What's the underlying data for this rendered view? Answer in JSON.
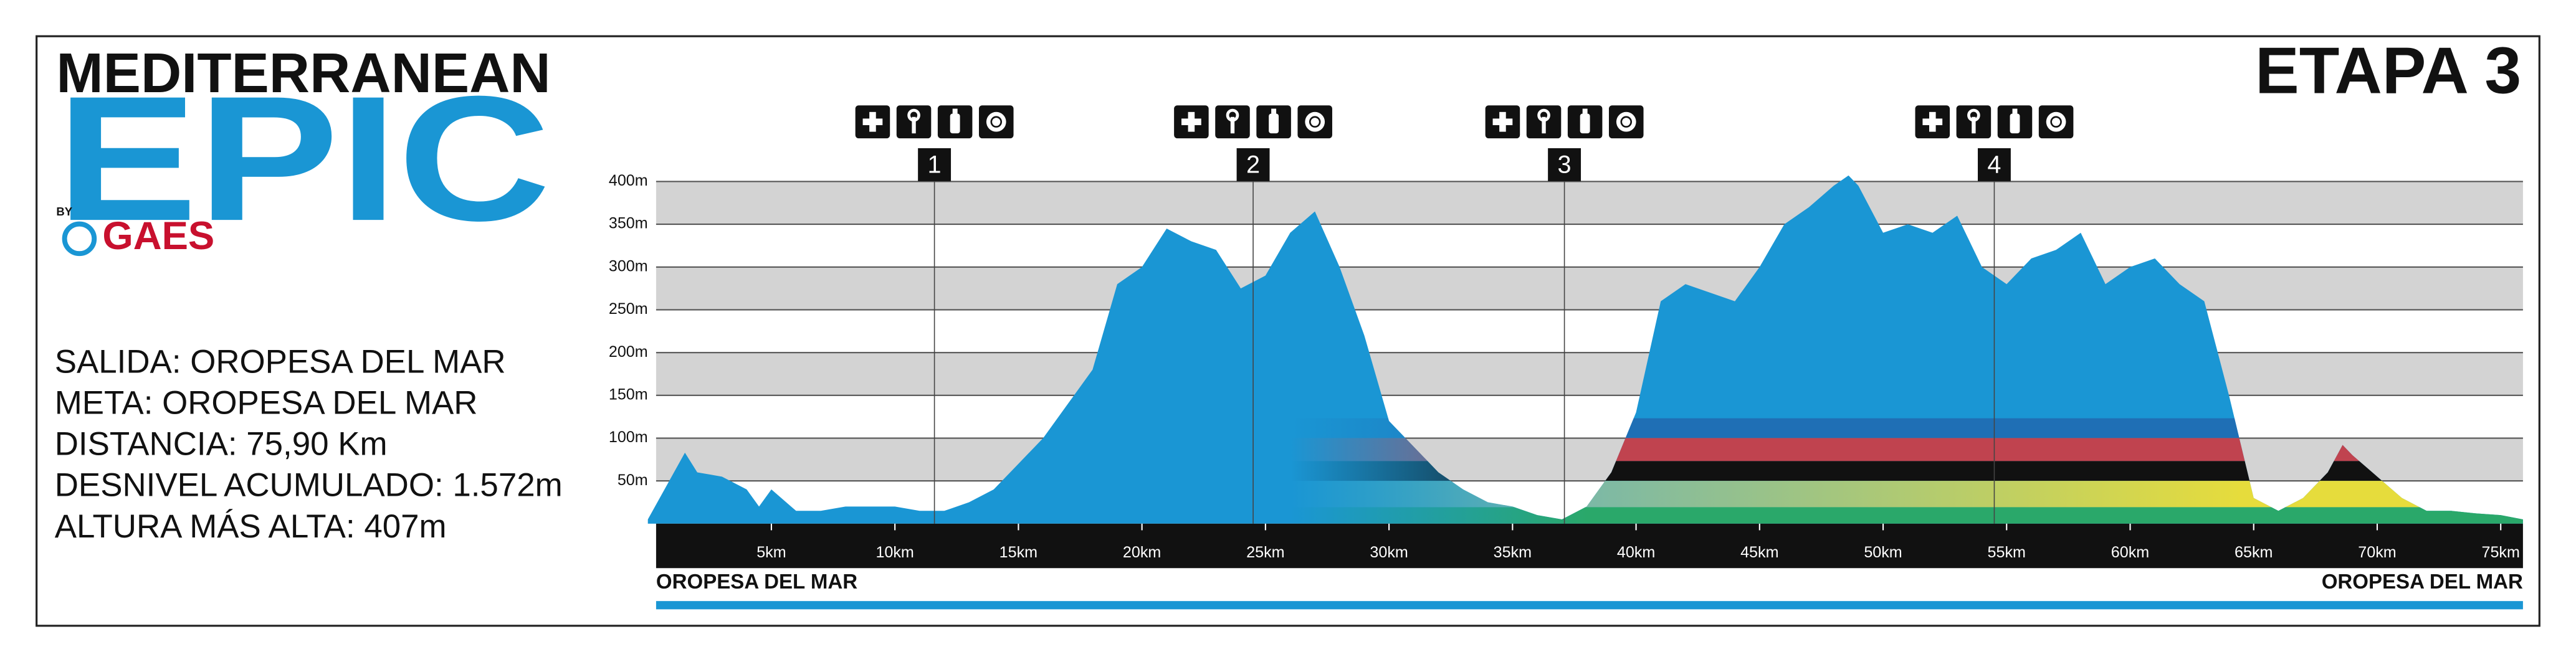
{
  "logo": {
    "line1": "MEDITERRANEAN",
    "line2": "EPIC",
    "by": "BY",
    "sponsor": "GAES"
  },
  "info": [
    "SALIDA: OROPESA DEL MAR",
    "META: OROPESA DEL MAR",
    "DISTANCIA: 75,90 Km",
    "DESNIVEL ACUMULADO: 1.572m",
    "ALTURA MÁS ALTA: 407m"
  ],
  "chart_data": {
    "type": "area",
    "title": "ETAPA 3",
    "color": "#1a96d4",
    "x": [
      0,
      1.5,
      2,
      3,
      4,
      4.5,
      5,
      6,
      7,
      8,
      9,
      10,
      11,
      12,
      13,
      14,
      15,
      16,
      17,
      18,
      19,
      20,
      21,
      22,
      23,
      24,
      25,
      26,
      27,
      28,
      29,
      30,
      31,
      32,
      33,
      34,
      35,
      36,
      37,
      38,
      39,
      40,
      41,
      42,
      43,
      44,
      45,
      46,
      47,
      48,
      48.6,
      49,
      50,
      51,
      52,
      53,
      54,
      55,
      56,
      57,
      58,
      59,
      60,
      61,
      62,
      63,
      64,
      65,
      66,
      67,
      68,
      68.6,
      69,
      70,
      71,
      72,
      73,
      74,
      75,
      75.9
    ],
    "values": [
      5,
      83,
      60,
      55,
      40,
      20,
      40,
      15,
      15,
      20,
      20,
      20,
      15,
      15,
      25,
      40,
      70,
      100,
      140,
      180,
      280,
      300,
      345,
      330,
      320,
      275,
      290,
      340,
      365,
      300,
      220,
      120,
      90,
      60,
      40,
      25,
      20,
      10,
      5,
      20,
      60,
      130,
      260,
      280,
      270,
      260,
      300,
      350,
      370,
      395,
      407,
      395,
      340,
      350,
      340,
      360,
      300,
      280,
      310,
      320,
      340,
      280,
      300,
      310,
      280,
      260,
      150,
      30,
      15,
      30,
      60,
      92,
      80,
      55,
      30,
      15,
      15,
      12,
      10,
      5
    ],
    "xlim": [
      0,
      75.9
    ],
    "ylim": [
      0,
      410
    ],
    "xticks": [
      {
        "value": 5,
        "label": "5km"
      },
      {
        "value": 10,
        "label": "10km"
      },
      {
        "value": 15,
        "label": "15km"
      },
      {
        "value": 20,
        "label": "20km"
      },
      {
        "value": 25,
        "label": "25km"
      },
      {
        "value": 30,
        "label": "30km"
      },
      {
        "value": 35,
        "label": "35km"
      },
      {
        "value": 40,
        "label": "40km"
      },
      {
        "value": 45,
        "label": "45km"
      },
      {
        "value": 50,
        "label": "50km"
      },
      {
        "value": 55,
        "label": "55km"
      },
      {
        "value": 60,
        "label": "60km"
      },
      {
        "value": 65,
        "label": "65km"
      },
      {
        "value": 70,
        "label": "70km"
      },
      {
        "value": 75,
        "label": "75km"
      }
    ],
    "yticks": [
      {
        "value": 50,
        "label": "50m"
      },
      {
        "value": 100,
        "label": "100m"
      },
      {
        "value": 150,
        "label": "150m"
      },
      {
        "value": 200,
        "label": "200m"
      },
      {
        "value": 250,
        "label": "250m"
      },
      {
        "value": 300,
        "label": "300m"
      },
      {
        "value": 350,
        "label": "350m"
      },
      {
        "value": 400,
        "label": "400m"
      }
    ],
    "grid": true,
    "stations": [
      {
        "label": "1",
        "km": 11.6
      },
      {
        "label": "2",
        "km": 24.5
      },
      {
        "label": "3",
        "km": 37.1
      },
      {
        "label": "4",
        "km": 54.5
      }
    ],
    "start_label": "OROPESA DEL MAR",
    "end_label": "OROPESA DEL MAR"
  }
}
